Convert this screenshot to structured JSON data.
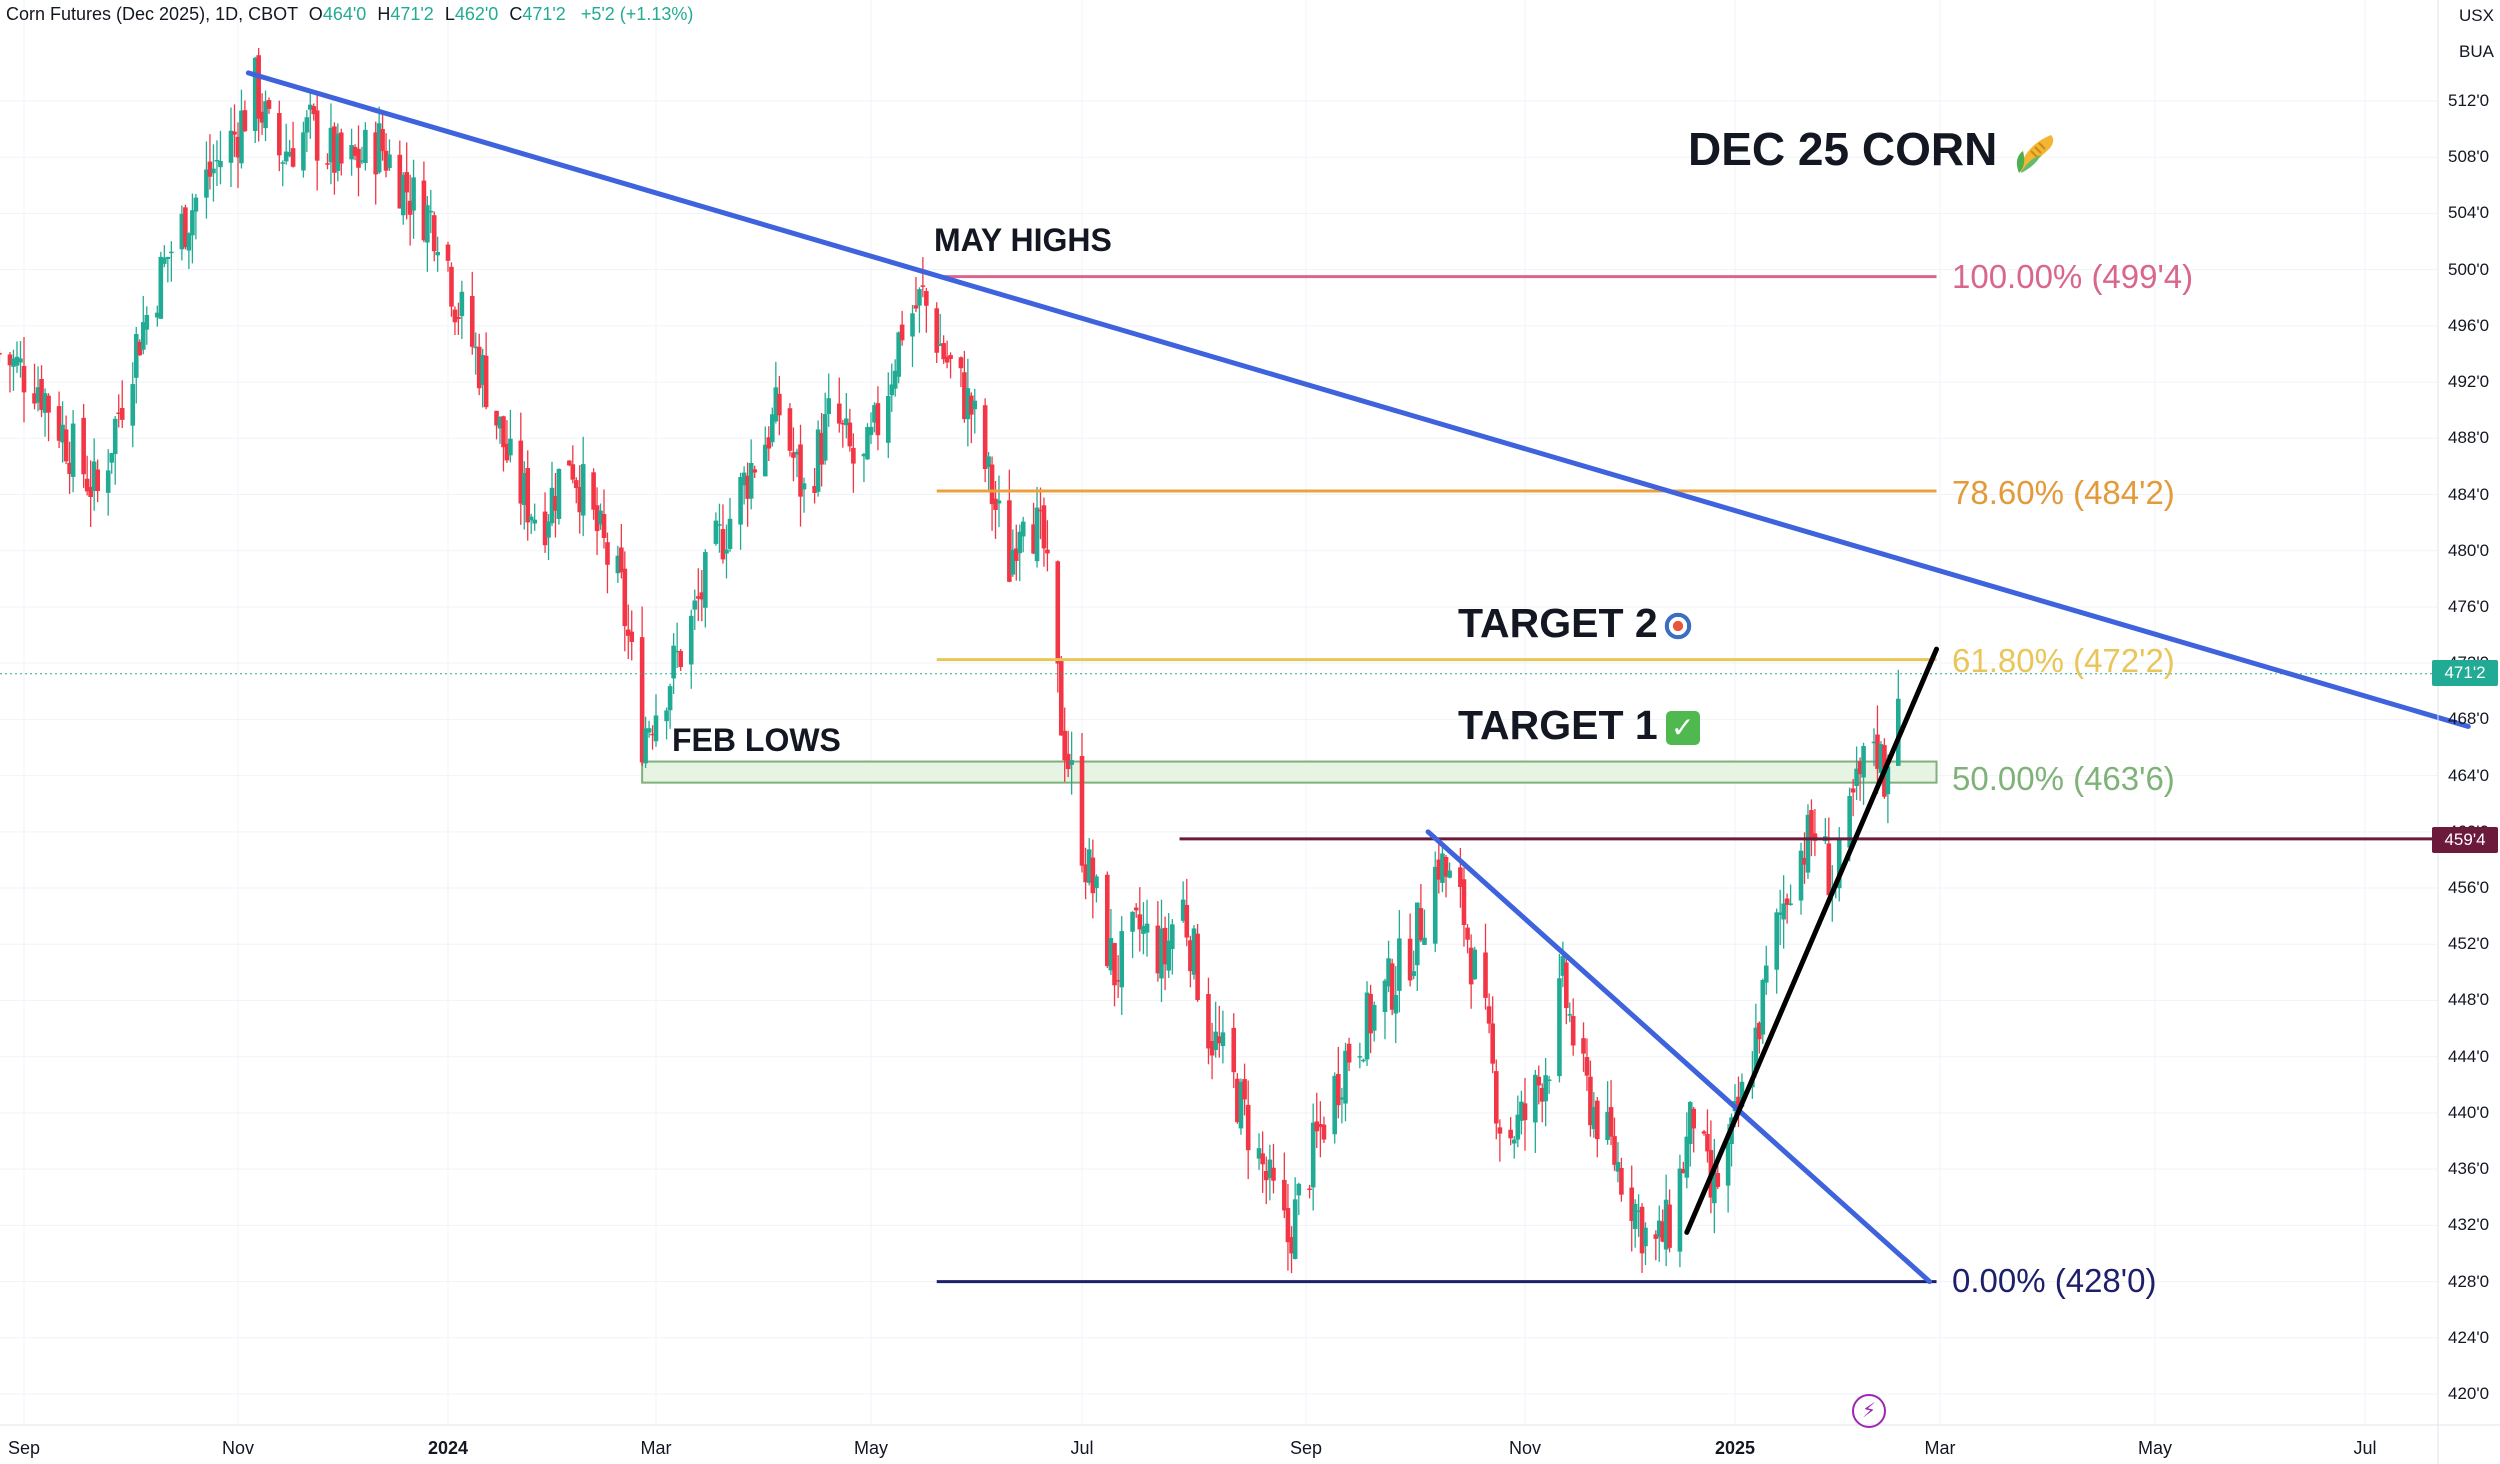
{
  "header": {
    "title": "Corn Futures (Dec 2025), 1D, CBOT",
    "open_label": "O",
    "open": "464'0",
    "high_label": "H",
    "high": "471'2",
    "low_label": "L",
    "low": "462'0",
    "close_label": "C",
    "close": "471'2",
    "change": "+5'2 (+1.13%)"
  },
  "corner": {
    "currency": "USX",
    "unit": "BUA"
  },
  "annotations": {
    "title": "DEC 25 CORN",
    "may_highs": "MAY HIGHS",
    "feb_lows": "FEB LOWS",
    "target2": "TARGET 2",
    "target1": "TARGET 1",
    "check_mark": "✓"
  },
  "fib_labels": {
    "f100": "100.00% (499'4)",
    "f786": "78.60% (484'2)",
    "f618": "61.80% (472'2)",
    "f50": "50.00% (463'6)",
    "f0": "0.00% (428'0)"
  },
  "badges": {
    "last_price": "471'2",
    "resistance": "459'4"
  },
  "colors": {
    "up": "#22ab94",
    "down": "#f23645",
    "trendline_blue": "#3e63dd",
    "fib100": "#d9668c",
    "fib786": "#eba13c",
    "fib618": "#e8c65a",
    "fib50": "#7fb279",
    "fib0": "#1e1f6b",
    "resistance": "#6b1a3c",
    "uptrend": "#000000"
  },
  "icons": [
    "corn-icon",
    "target-icon",
    "check-icon",
    "lightning-icon"
  ],
  "chart_data": {
    "type": "candlestick",
    "title": "Corn Futures (Dec 2025), 1D, CBOT",
    "y_ticks": [
      "512'0",
      "508'0",
      "504'0",
      "500'0",
      "496'0",
      "492'0",
      "488'0",
      "484'0",
      "480'0",
      "476'0",
      "472'0",
      "468'0",
      "464'0",
      "460'0",
      "456'0",
      "452'0",
      "448'0",
      "444'0",
      "440'0",
      "436'0",
      "432'0",
      "428'0",
      "424'0",
      "420'0"
    ],
    "x_ticks": [
      {
        "label": "Sep",
        "bold": false,
        "date": "2023-09-01"
      },
      {
        "label": "Nov",
        "bold": false,
        "date": "2023-11-01"
      },
      {
        "label": "2024",
        "bold": true,
        "date": "2024-01-01"
      },
      {
        "label": "Mar",
        "bold": false,
        "date": "2024-03-01"
      },
      {
        "label": "May",
        "bold": false,
        "date": "2024-05-01"
      },
      {
        "label": "Jul",
        "bold": false,
        "date": "2024-07-01"
      },
      {
        "label": "Sep",
        "bold": false,
        "date": "2024-09-01"
      },
      {
        "label": "Nov",
        "bold": false,
        "date": "2024-11-01"
      },
      {
        "label": "2025",
        "bold": true,
        "date": "2025-01-01"
      },
      {
        "label": "Mar",
        "bold": false,
        "date": "2025-03-01"
      },
      {
        "label": "May",
        "bold": false,
        "date": "2025-05-01"
      },
      {
        "label": "Jul",
        "bold": false,
        "date": "2025-07-01"
      }
    ],
    "ylim": [
      418,
      518
    ],
    "close_path": [
      {
        "date": "2023-08-25",
        "close": 494
      },
      {
        "date": "2023-09-05",
        "close": 492
      },
      {
        "date": "2023-09-15",
        "close": 487
      },
      {
        "date": "2023-09-22",
        "close": 484
      },
      {
        "date": "2023-10-02",
        "close": 494
      },
      {
        "date": "2023-10-12",
        "close": 501
      },
      {
        "date": "2023-10-22",
        "close": 506
      },
      {
        "date": "2023-11-01",
        "close": 510
      },
      {
        "date": "2023-11-06",
        "close": 513
      },
      {
        "date": "2023-11-12",
        "close": 508
      },
      {
        "date": "2023-11-22",
        "close": 510
      },
      {
        "date": "2023-12-02",
        "close": 507
      },
      {
        "date": "2023-12-12",
        "close": 509
      },
      {
        "date": "2023-12-22",
        "close": 505
      },
      {
        "date": "2023-12-30",
        "close": 503
      },
      {
        "date": "2024-01-03",
        "close": 498
      },
      {
        "date": "2024-01-12",
        "close": 492
      },
      {
        "date": "2024-01-20",
        "close": 485
      },
      {
        "date": "2024-01-28",
        "close": 482
      },
      {
        "date": "2024-02-05",
        "close": 487
      },
      {
        "date": "2024-02-12",
        "close": 482
      },
      {
        "date": "2024-02-20",
        "close": 477
      },
      {
        "date": "2024-02-26",
        "close": 467
      },
      {
        "date": "2024-03-03",
        "close": 470
      },
      {
        "date": "2024-03-10",
        "close": 474
      },
      {
        "date": "2024-03-18",
        "close": 480
      },
      {
        "date": "2024-03-28",
        "close": 486
      },
      {
        "date": "2024-04-05",
        "close": 490
      },
      {
        "date": "2024-04-12",
        "close": 484
      },
      {
        "date": "2024-04-20",
        "close": 490
      },
      {
        "date": "2024-04-28",
        "close": 485
      },
      {
        "date": "2024-05-04",
        "close": 490
      },
      {
        "date": "2024-05-10",
        "close": 496
      },
      {
        "date": "2024-05-16",
        "close": 498
      },
      {
        "date": "2024-05-22",
        "close": 494
      },
      {
        "date": "2024-05-30",
        "close": 490
      },
      {
        "date": "2024-06-05",
        "close": 484
      },
      {
        "date": "2024-06-10",
        "close": 479
      },
      {
        "date": "2024-06-14",
        "close": 484
      },
      {
        "date": "2024-06-20",
        "close": 480
      },
      {
        "date": "2024-06-25",
        "close": 468
      },
      {
        "date": "2024-07-02",
        "close": 458
      },
      {
        "date": "2024-07-10",
        "close": 450
      },
      {
        "date": "2024-07-17",
        "close": 453
      },
      {
        "date": "2024-07-24",
        "close": 451
      },
      {
        "date": "2024-07-28",
        "close": 456
      },
      {
        "date": "2024-08-05",
        "close": 446
      },
      {
        "date": "2024-08-12",
        "close": 442
      },
      {
        "date": "2024-08-20",
        "close": 436
      },
      {
        "date": "2024-08-27",
        "close": 431
      },
      {
        "date": "2024-09-04",
        "close": 438
      },
      {
        "date": "2024-09-12",
        "close": 444
      },
      {
        "date": "2024-09-22",
        "close": 448
      },
      {
        "date": "2024-10-01",
        "close": 452
      },
      {
        "date": "2024-10-08",
        "close": 458
      },
      {
        "date": "2024-10-15",
        "close": 454
      },
      {
        "date": "2024-10-21",
        "close": 446
      },
      {
        "date": "2024-10-26",
        "close": 438
      },
      {
        "date": "2024-11-02",
        "close": 440
      },
      {
        "date": "2024-11-08",
        "close": 444
      },
      {
        "date": "2024-11-12",
        "close": 449
      },
      {
        "date": "2024-11-18",
        "close": 442
      },
      {
        "date": "2024-11-25",
        "close": 438
      },
      {
        "date": "2024-12-02",
        "close": 434
      },
      {
        "date": "2024-12-08",
        "close": 430
      },
      {
        "date": "2024-12-13",
        "close": 432
      },
      {
        "date": "2024-12-20",
        "close": 440
      },
      {
        "date": "2024-12-25",
        "close": 434
      },
      {
        "date": "2024-12-30",
        "close": 437
      },
      {
        "date": "2025-01-06",
        "close": 444
      },
      {
        "date": "2025-01-12",
        "close": 452
      },
      {
        "date": "2025-01-18",
        "close": 458
      },
      {
        "date": "2025-01-24",
        "close": 460
      },
      {
        "date": "2025-01-30",
        "close": 456
      },
      {
        "date": "2025-02-04",
        "close": 462
      },
      {
        "date": "2025-02-10",
        "close": 467
      },
      {
        "date": "2025-02-13",
        "close": 464
      },
      {
        "date": "2025-02-17",
        "close": 471.25
      }
    ],
    "horizontal_levels": [
      {
        "name": "100.00%",
        "value": 499.5,
        "start": "2024-05-20",
        "end": "2025-02-28"
      },
      {
        "name": "78.60%",
        "value": 484.25,
        "start": "2024-05-20",
        "end": "2025-02-28"
      },
      {
        "name": "61.80%",
        "value": 472.25,
        "start": "2024-05-20",
        "end": "2025-02-28"
      },
      {
        "name": "50.00%",
        "value": 463.75,
        "start": "2024-05-20",
        "end": "2025-02-28"
      },
      {
        "name": "0.00%",
        "value": 428,
        "start": "2024-05-20",
        "end": "2025-02-28"
      },
      {
        "name": "459'4",
        "value": 459.5,
        "start": "2024-07-28",
        "end": "2025-07-31"
      }
    ],
    "feb_lows_zone": {
      "low": 463.5,
      "high": 465,
      "start": "2024-02-26",
      "end": "2025-02-28"
    },
    "trendlines": [
      {
        "name": "downtrend-main",
        "from": {
          "date": "2023-11-04",
          "value": 514
        },
        "to": {
          "date": "2025-07-31",
          "value": 467.5
        }
      },
      {
        "name": "downtrend-short",
        "from": {
          "date": "2024-10-05",
          "value": 460
        },
        "to": {
          "date": "2025-02-26",
          "value": 428
        }
      },
      {
        "name": "uptrend",
        "from": {
          "date": "2024-12-18",
          "value": 431.5
        },
        "to": {
          "date": "2025-02-28",
          "value": 473
        }
      }
    ]
  }
}
